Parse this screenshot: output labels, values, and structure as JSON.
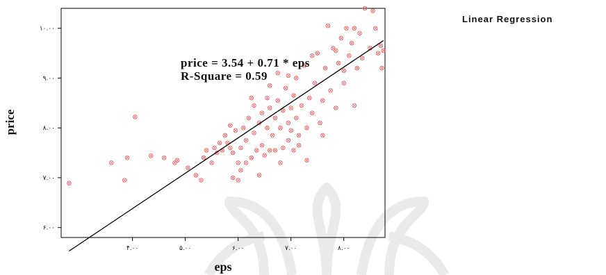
{
  "header": {
    "title": "Linear Regression"
  },
  "colors": {
    "points": "#f06464",
    "line": "#000000",
    "frame": "#000000",
    "watermark": "#d6d6d6"
  },
  "chart_data": {
    "type": "scatter",
    "title": "Linear Regression",
    "xlabel": "eps",
    "ylabel": "price",
    "xlim": [
      2.65,
      8.78
    ],
    "ylim": [
      5.8,
      10.4
    ],
    "xticks": [
      4,
      5,
      6,
      7,
      8
    ],
    "yticks": [
      6,
      7,
      8,
      9,
      10
    ],
    "xtick_labels": [
      "۴.۰۰",
      "۵.۰۰",
      "۶.۰۰",
      "۷.۰۰",
      "۸.۰۰"
    ],
    "ytick_labels": [
      "۶.۰۰",
      "۷.۰۰",
      "۸.۰۰",
      "۹.۰۰",
      "۱۰.۰۰"
    ],
    "annotation": [
      "price = 3.54 + 0.71 * eps",
      "R-Square = 0.59"
    ],
    "regression": {
      "intercept": 3.54,
      "slope": 0.71,
      "r_square": 0.59,
      "x_range": [
        2.8,
        8.75
      ]
    },
    "marker": "circle-x",
    "points": [
      [
        2.8,
        6.89
      ],
      [
        3.6,
        7.3
      ],
      [
        3.85,
        6.95
      ],
      [
        3.9,
        7.4
      ],
      [
        4.05,
        8.22
      ],
      [
        4.35,
        7.44
      ],
      [
        4.6,
        7.4
      ],
      [
        4.8,
        7.3
      ],
      [
        4.85,
        7.35
      ],
      [
        5.05,
        7.2
      ],
      [
        5.2,
        7.05
      ],
      [
        5.35,
        7.4
      ],
      [
        5.4,
        7.55
      ],
      [
        5.5,
        7.3
      ],
      [
        5.55,
        7.6
      ],
      [
        5.6,
        7.5
      ],
      [
        5.65,
        7.7
      ],
      [
        5.7,
        7.55
      ],
      [
        5.75,
        7.85
      ],
      [
        5.8,
        7.7
      ],
      [
        5.85,
        7.6
      ],
      [
        5.85,
        8.05
      ],
      [
        5.9,
        7.5
      ],
      [
        5.9,
        7.0
      ],
      [
        5.95,
        7.95
      ],
      [
        6.0,
        6.95
      ],
      [
        6.0,
        7.3
      ],
      [
        6.05,
        7.15
      ],
      [
        6.05,
        7.6
      ],
      [
        6.1,
        8.0
      ],
      [
        6.15,
        7.75
      ],
      [
        6.2,
        8.2
      ],
      [
        6.25,
        7.4
      ],
      [
        6.3,
        7.9
      ],
      [
        6.3,
        8.45
      ],
      [
        6.35,
        7.55
      ],
      [
        6.4,
        8.1
      ],
      [
        6.45,
        7.65
      ],
      [
        6.45,
        8.3
      ],
      [
        6.5,
        7.45
      ],
      [
        6.55,
        8.0
      ],
      [
        6.55,
        8.6
      ],
      [
        6.6,
        7.55
      ],
      [
        6.6,
        8.4
      ],
      [
        6.65,
        7.85
      ],
      [
        6.7,
        8.2
      ],
      [
        6.7,
        7.55
      ],
      [
        6.75,
        8.55
      ],
      [
        6.75,
        9.1
      ],
      [
        6.8,
        7.3
      ],
      [
        6.8,
        8.0
      ],
      [
        6.85,
        8.35
      ],
      [
        6.85,
        7.6
      ],
      [
        6.9,
        8.8
      ],
      [
        6.95,
        8.1
      ],
      [
        6.95,
        7.75
      ],
      [
        7.0,
        8.4
      ],
      [
        7.0,
        7.95
      ],
      [
        7.05,
        8.65
      ],
      [
        7.05,
        7.55
      ],
      [
        7.1,
        9.0
      ],
      [
        7.1,
        8.2
      ],
      [
        7.15,
        7.85
      ],
      [
        7.2,
        8.45
      ],
      [
        7.25,
        9.25
      ],
      [
        7.3,
        8.0
      ],
      [
        7.35,
        8.6
      ],
      [
        7.4,
        8.3
      ],
      [
        7.45,
        8.9
      ],
      [
        7.5,
        9.5
      ],
      [
        7.55,
        8.1
      ],
      [
        7.6,
        8.55
      ],
      [
        7.65,
        9.2
      ],
      [
        7.7,
        10.05
      ],
      [
        7.75,
        8.75
      ],
      [
        7.8,
        9.6
      ],
      [
        7.85,
        8.4
      ],
      [
        7.9,
        9.3
      ],
      [
        7.95,
        9.8
      ],
      [
        8.0,
        8.9
      ],
      [
        8.05,
        10.0
      ],
      [
        8.1,
        9.45
      ],
      [
        8.15,
        9.7
      ],
      [
        8.2,
        10.0
      ],
      [
        8.25,
        9.2
      ],
      [
        8.3,
        9.9
      ],
      [
        8.35,
        9.4
      ],
      [
        8.4,
        10.4
      ],
      [
        8.5,
        9.6
      ],
      [
        8.55,
        10.35
      ],
      [
        8.6,
        10.0
      ],
      [
        8.65,
        9.5
      ],
      [
        8.7,
        9.65
      ],
      [
        8.72,
        9.2
      ],
      [
        8.75,
        9.55
      ],
      [
        8.2,
        8.45
      ],
      [
        7.3,
        7.35
      ],
      [
        7.15,
        7.65
      ],
      [
        6.4,
        7.05
      ],
      [
        6.25,
        8.6
      ],
      [
        5.3,
        6.95
      ],
      [
        6.15,
        7.3
      ],
      [
        7.6,
        7.85
      ],
      [
        8.0,
        9.15
      ],
      [
        7.85,
        9.55
      ],
      [
        7.4,
        9.45
      ],
      [
        6.95,
        9.05
      ],
      [
        6.6,
        8.85
      ]
    ]
  }
}
